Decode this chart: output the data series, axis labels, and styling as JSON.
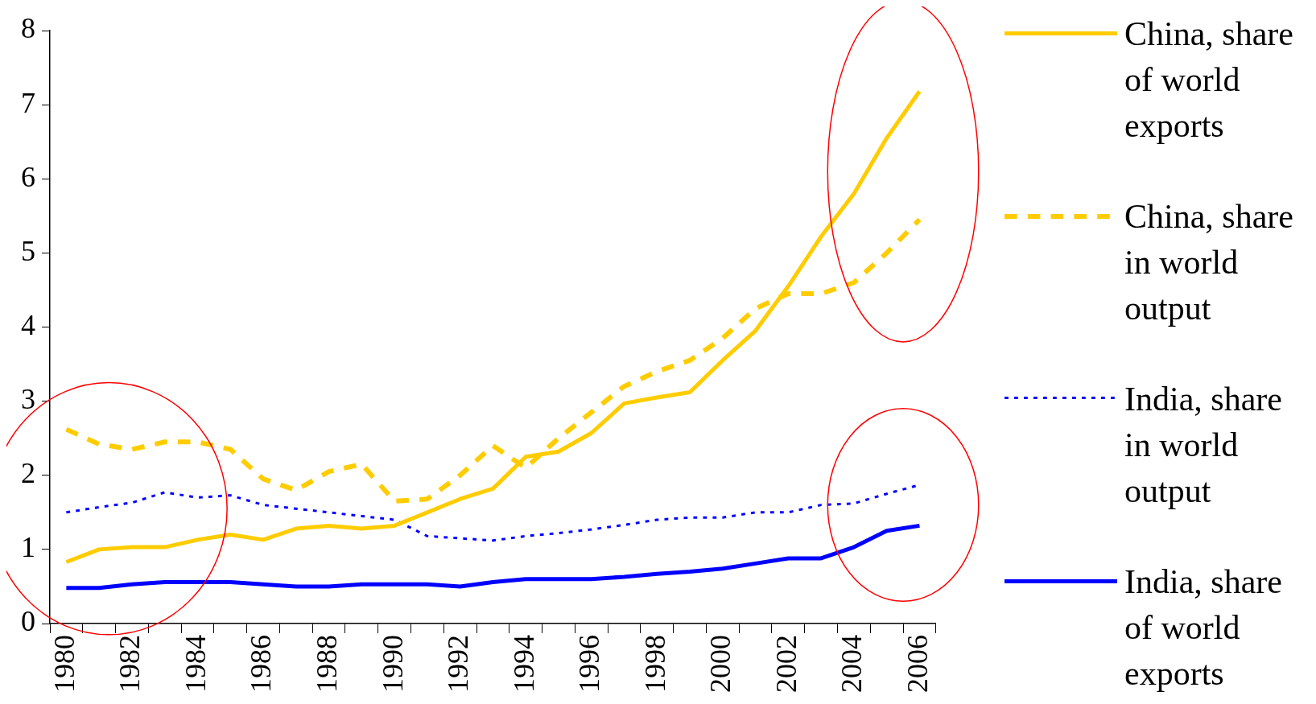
{
  "chart_data": {
    "type": "line",
    "categories": [
      "1980",
      null,
      "1982",
      null,
      "1984",
      null,
      "1986",
      null,
      "1988",
      null,
      "1990",
      null,
      "1992",
      null,
      "1994",
      null,
      "1996",
      null,
      "1998",
      null,
      "2000",
      null,
      "2002",
      null,
      "2004",
      null,
      "2006"
    ],
    "series": [
      {
        "name": "China, share of world exports",
        "color": "#ffcc00",
        "line_style": "solid",
        "values": [
          0.83,
          1.0,
          1.03,
          1.03,
          1.13,
          1.2,
          1.13,
          1.28,
          1.32,
          1.28,
          1.32,
          1.5,
          1.68,
          1.82,
          2.25,
          2.32,
          2.57,
          2.97,
          3.05,
          3.12,
          3.55,
          3.95,
          4.55,
          5.22,
          5.8,
          6.55,
          7.18
        ]
      },
      {
        "name": "China, share in world output",
        "color": "#ffcc00",
        "line_style": "dashed",
        "values": [
          2.62,
          2.42,
          2.35,
          2.45,
          2.45,
          2.35,
          1.95,
          1.8,
          2.05,
          2.15,
          1.65,
          1.68,
          2.0,
          2.4,
          2.1,
          2.5,
          2.85,
          3.2,
          3.4,
          3.55,
          3.85,
          4.25,
          4.45,
          4.45,
          4.6,
          5.0,
          5.45
        ]
      },
      {
        "name": "India, share in world output",
        "color": "#0000ff",
        "line_style": "dotted",
        "values": [
          1.5,
          1.57,
          1.63,
          1.77,
          1.7,
          1.73,
          1.6,
          1.55,
          1.5,
          1.45,
          1.4,
          1.18,
          1.15,
          1.12,
          1.18,
          1.22,
          1.27,
          1.33,
          1.4,
          1.43,
          1.43,
          1.5,
          1.5,
          1.6,
          1.62,
          1.75,
          1.87
        ]
      },
      {
        "name": "India, share of world exports",
        "color": "#0000ff",
        "line_style": "solid",
        "values": [
          0.48,
          0.48,
          0.53,
          0.56,
          0.56,
          0.56,
          0.53,
          0.5,
          0.5,
          0.53,
          0.53,
          0.53,
          0.5,
          0.56,
          0.6,
          0.6,
          0.6,
          0.63,
          0.67,
          0.7,
          0.74,
          0.81,
          0.88,
          0.88,
          1.03,
          1.25,
          1.32
        ]
      }
    ],
    "ylim": [
      0,
      8
    ],
    "yticks": [
      0,
      1,
      2,
      3,
      4,
      5,
      6,
      7,
      8
    ],
    "grid": false,
    "legend": "right",
    "marker": "none"
  }
}
